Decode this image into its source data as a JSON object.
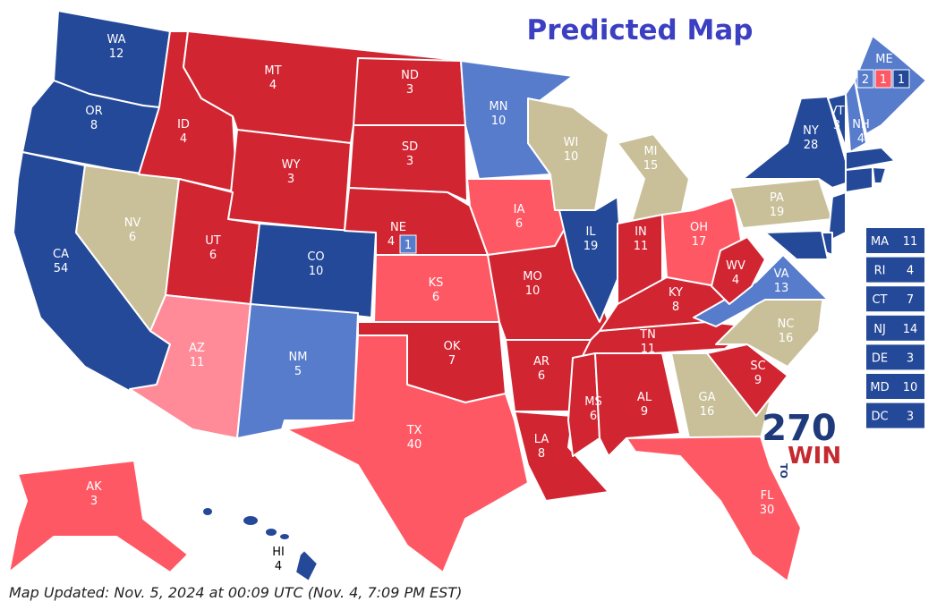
{
  "title": "Predicted Map",
  "footer": "Map Updated: Nov. 5, 2024 at 00:09 UTC (Nov. 4, 7:09 PM EST)",
  "logo": {
    "number": "270",
    "to": "TO",
    "win": "WIN"
  },
  "states": [
    {
      "abbr": "WA",
      "votes": 12,
      "color": "#244999"
    },
    {
      "abbr": "OR",
      "votes": 8,
      "color": "#244999"
    },
    {
      "abbr": "CA",
      "votes": 54,
      "color": "#244999"
    },
    {
      "abbr": "NV",
      "votes": 6,
      "color": "#c9c09a"
    },
    {
      "abbr": "ID",
      "votes": 4,
      "color": "#d22532"
    },
    {
      "abbr": "MT",
      "votes": 4,
      "color": "#d22532"
    },
    {
      "abbr": "WY",
      "votes": 3,
      "color": "#d22532"
    },
    {
      "abbr": "UT",
      "votes": 6,
      "color": "#d22532"
    },
    {
      "abbr": "CO",
      "votes": 10,
      "color": "#244999"
    },
    {
      "abbr": "AZ",
      "votes": 11,
      "color": "#ff8b98"
    },
    {
      "abbr": "NM",
      "votes": 5,
      "color": "#577ccc"
    },
    {
      "abbr": "ND",
      "votes": 3,
      "color": "#d22532"
    },
    {
      "abbr": "SD",
      "votes": 3,
      "color": "#d22532"
    },
    {
      "abbr": "NE",
      "votes": 4,
      "color": "#d22532",
      "districts": [
        {
          "votes": 1,
          "color": "#577ccc"
        }
      ]
    },
    {
      "abbr": "KS",
      "votes": 6,
      "color": "#ff5865"
    },
    {
      "abbr": "OK",
      "votes": 7,
      "color": "#d22532"
    },
    {
      "abbr": "TX",
      "votes": 40,
      "color": "#ff5865"
    },
    {
      "abbr": "MN",
      "votes": 10,
      "color": "#577ccc"
    },
    {
      "abbr": "IA",
      "votes": 6,
      "color": "#ff5865"
    },
    {
      "abbr": "MO",
      "votes": 10,
      "color": "#d22532"
    },
    {
      "abbr": "AR",
      "votes": 6,
      "color": "#d22532"
    },
    {
      "abbr": "LA",
      "votes": 8,
      "color": "#d22532"
    },
    {
      "abbr": "WI",
      "votes": 10,
      "color": "#c9c09a"
    },
    {
      "abbr": "MI",
      "votes": 15,
      "color": "#c9c09a"
    },
    {
      "abbr": "IL",
      "votes": 19,
      "color": "#244999"
    },
    {
      "abbr": "IN",
      "votes": 11,
      "color": "#d22532"
    },
    {
      "abbr": "OH",
      "votes": 17,
      "color": "#ff5865"
    },
    {
      "abbr": "KY",
      "votes": 8,
      "color": "#d22532"
    },
    {
      "abbr": "TN",
      "votes": 11,
      "color": "#d22532"
    },
    {
      "abbr": "MS",
      "votes": 6,
      "color": "#d22532"
    },
    {
      "abbr": "AL",
      "votes": 9,
      "color": "#d22532"
    },
    {
      "abbr": "GA",
      "votes": 16,
      "color": "#c9c09a"
    },
    {
      "abbr": "FL",
      "votes": 30,
      "color": "#ff5865"
    },
    {
      "abbr": "SC",
      "votes": 9,
      "color": "#d22532"
    },
    {
      "abbr": "NC",
      "votes": 16,
      "color": "#c9c09a"
    },
    {
      "abbr": "VA",
      "votes": 13,
      "color": "#577ccc"
    },
    {
      "abbr": "WV",
      "votes": 4,
      "color": "#d22532"
    },
    {
      "abbr": "PA",
      "votes": 19,
      "color": "#c9c09a"
    },
    {
      "abbr": "NY",
      "votes": 28,
      "color": "#244999"
    },
    {
      "abbr": "VT",
      "votes": 3,
      "color": "#244999"
    },
    {
      "abbr": "NH",
      "votes": 4,
      "color": "#577ccc"
    },
    {
      "abbr": "ME",
      "color": "#577ccc",
      "districts": [
        {
          "votes": 2,
          "color": "#577ccc"
        },
        {
          "votes": 1,
          "color": "#ff5865"
        },
        {
          "votes": 1,
          "color": "#244999"
        }
      ]
    },
    {
      "abbr": "AK",
      "votes": 3,
      "color": "#ff5865"
    },
    {
      "abbr": "HI",
      "votes": 4,
      "color": "#244999"
    }
  ],
  "boxed_states": [
    {
      "abbr": "MA",
      "votes": 11,
      "color": "#244999"
    },
    {
      "abbr": "RI",
      "votes": 4,
      "color": "#244999"
    },
    {
      "abbr": "CT",
      "votes": 7,
      "color": "#244999"
    },
    {
      "abbr": "NJ",
      "votes": 14,
      "color": "#244999"
    },
    {
      "abbr": "DE",
      "votes": 3,
      "color": "#244999"
    },
    {
      "abbr": "MD",
      "votes": 10,
      "color": "#244999"
    },
    {
      "abbr": "DC",
      "votes": 3,
      "color": "#244999"
    }
  ]
}
